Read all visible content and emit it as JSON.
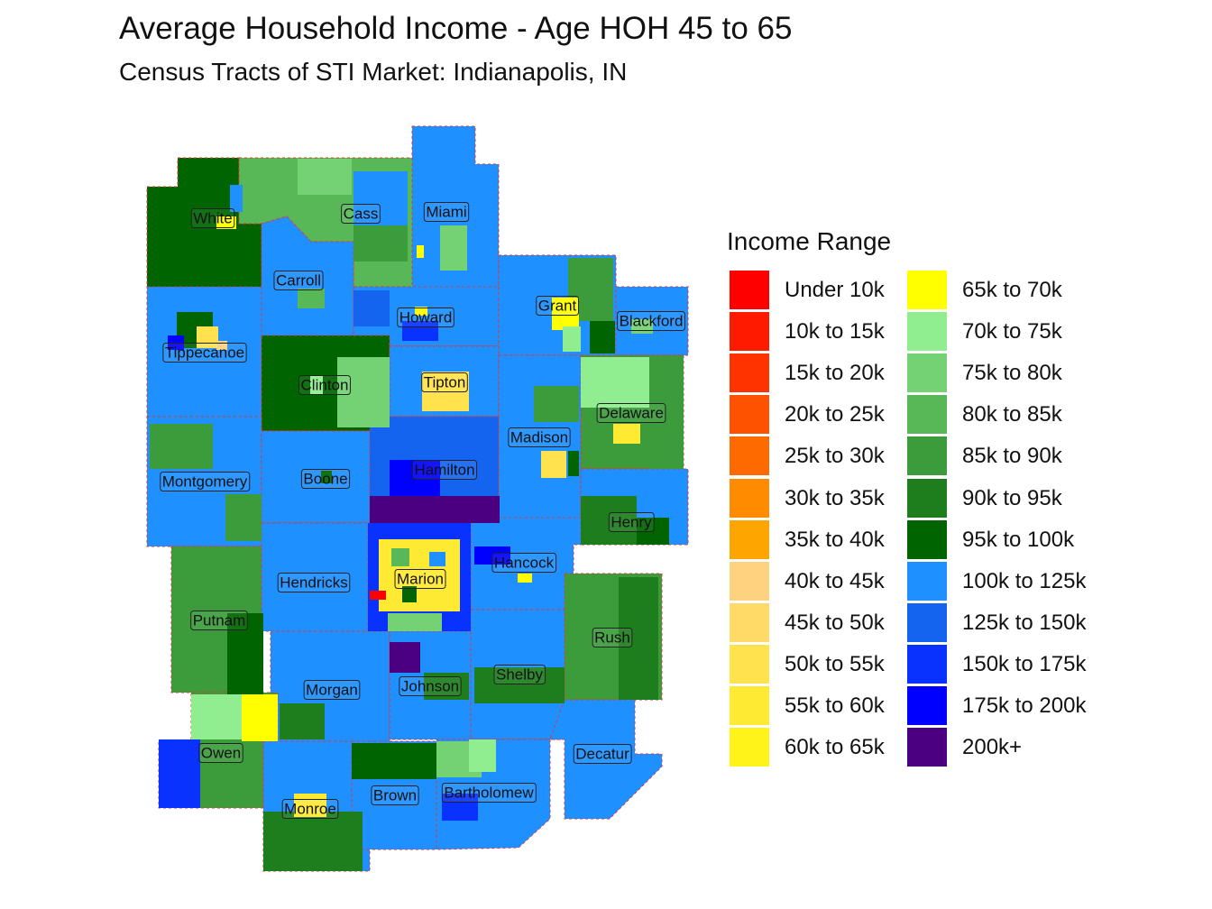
{
  "title": "Average Household Income - Age HOH 45 to 65",
  "subtitle": "Census Tracts of STI Market: Indianapolis, IN",
  "legend": {
    "title": "Income Range",
    "items": [
      {
        "label": "Under 10k",
        "color": "#ff0000"
      },
      {
        "label": "10k to 15k",
        "color": "#ff1a00"
      },
      {
        "label": "15k to 20k",
        "color": "#ff3300"
      },
      {
        "label": "20k to 25k",
        "color": "#ff5200"
      },
      {
        "label": "25k to 30k",
        "color": "#ff6a00"
      },
      {
        "label": "30k to 35k",
        "color": "#ff8c00"
      },
      {
        "label": "35k to 40k",
        "color": "#ffa500"
      },
      {
        "label": "40k to 45k",
        "color": "#ffd27f"
      },
      {
        "label": "45k to 50k",
        "color": "#ffda66"
      },
      {
        "label": "50k to 55k",
        "color": "#ffe24d"
      },
      {
        "label": "55k to 60k",
        "color": "#ffea33"
      },
      {
        "label": "60k to 65k",
        "color": "#fff31a"
      },
      {
        "label": "65k to 70k",
        "color": "#ffff00"
      },
      {
        "label": "70k to 75k",
        "color": "#90ee90"
      },
      {
        "label": "75k to 80k",
        "color": "#74d274"
      },
      {
        "label": "80k to 85k",
        "color": "#58b858"
      },
      {
        "label": "85k to 90k",
        "color": "#3c9c3c"
      },
      {
        "label": "90k to 95k",
        "color": "#1e7e1e"
      },
      {
        "label": "95k to 100k",
        "color": "#006400"
      },
      {
        "label": "100k to 125k",
        "color": "#1e90ff"
      },
      {
        "label": "125k to 150k",
        "color": "#1464f0"
      },
      {
        "label": "150k to 175k",
        "color": "#0a32ff"
      },
      {
        "label": "175k to 200k",
        "color": "#0000ff"
      },
      {
        "label": "200k+",
        "color": "#4b0082"
      }
    ]
  },
  "counties": [
    {
      "name": "White",
      "fill": "#006400"
    },
    {
      "name": "Cass",
      "fill": "#58b858"
    },
    {
      "name": "Miami",
      "fill": "#1e90ff"
    },
    {
      "name": "Carroll",
      "fill": "#1e90ff"
    },
    {
      "name": "Howard",
      "fill": "#1e90ff"
    },
    {
      "name": "Grant",
      "fill": "#1e90ff"
    },
    {
      "name": "Blackford",
      "fill": "#1e90ff"
    },
    {
      "name": "Tippecanoe",
      "fill": "#1e90ff"
    },
    {
      "name": "Clinton",
      "fill": "#006400"
    },
    {
      "name": "Tipton",
      "fill": "#1e90ff"
    },
    {
      "name": "Delaware",
      "fill": "#3c9c3c"
    },
    {
      "name": "Madison",
      "fill": "#1e90ff"
    },
    {
      "name": "Montgomery",
      "fill": "#1e90ff"
    },
    {
      "name": "Boone",
      "fill": "#1e90ff"
    },
    {
      "name": "Hamilton",
      "fill": "#1464f0"
    },
    {
      "name": "Henry",
      "fill": "#1e90ff"
    },
    {
      "name": "Hancock",
      "fill": "#1e90ff"
    },
    {
      "name": "Hendricks",
      "fill": "#1e90ff"
    },
    {
      "name": "Marion",
      "fill": "#1e90ff"
    },
    {
      "name": "Putnam",
      "fill": "#3c9c3c"
    },
    {
      "name": "Rush",
      "fill": "#3c9c3c"
    },
    {
      "name": "Morgan",
      "fill": "#1e90ff"
    },
    {
      "name": "Johnson",
      "fill": "#1e90ff"
    },
    {
      "name": "Shelby",
      "fill": "#1e90ff"
    },
    {
      "name": "Owen",
      "fill": "#3c9c3c"
    },
    {
      "name": "Decatur",
      "fill": "#1e90ff"
    },
    {
      "name": "Brown",
      "fill": "#1e90ff"
    },
    {
      "name": "Bartholomew",
      "fill": "#1e90ff"
    },
    {
      "name": "Monroe",
      "fill": "#1e90ff"
    }
  ]
}
